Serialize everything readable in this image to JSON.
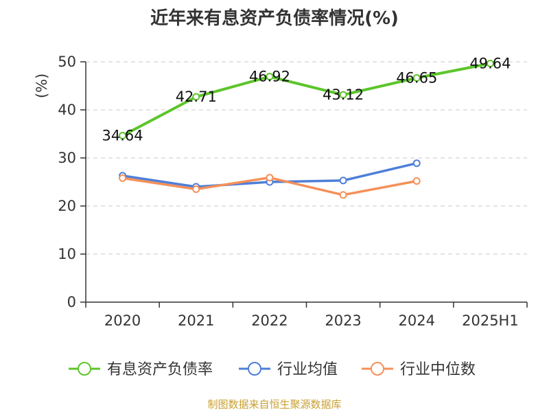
{
  "title": "近年来有息资产负债率情况(%)",
  "source": "制图数据来自恒生聚源数据库",
  "chart_data": {
    "type": "line",
    "title": "近年来有息资产负债率情况(%)",
    "ylabel": "(%)",
    "xlabel": "",
    "categories": [
      "2020",
      "2021",
      "2022",
      "2023",
      "2024",
      "2025H1"
    ],
    "ylim": [
      0,
      50
    ],
    "yticks": [
      0,
      10,
      20,
      30,
      40,
      50
    ],
    "grid": true,
    "legend_position": "bottom",
    "series": [
      {
        "name": "有息资产负债率",
        "color": "#5cc52a",
        "values": [
          34.64,
          42.71,
          46.92,
          43.12,
          46.65,
          49.64
        ],
        "labels": [
          "34.64",
          "42.71",
          "46.92",
          "43.12",
          "46.65",
          "49.64"
        ]
      },
      {
        "name": "行业均值",
        "color": "#4e7fd8",
        "values": [
          26.3,
          24.0,
          25.0,
          25.3,
          28.9,
          null
        ]
      },
      {
        "name": "行业中位数",
        "color": "#f59059",
        "values": [
          25.8,
          23.5,
          25.9,
          22.3,
          25.2,
          null
        ]
      }
    ]
  }
}
